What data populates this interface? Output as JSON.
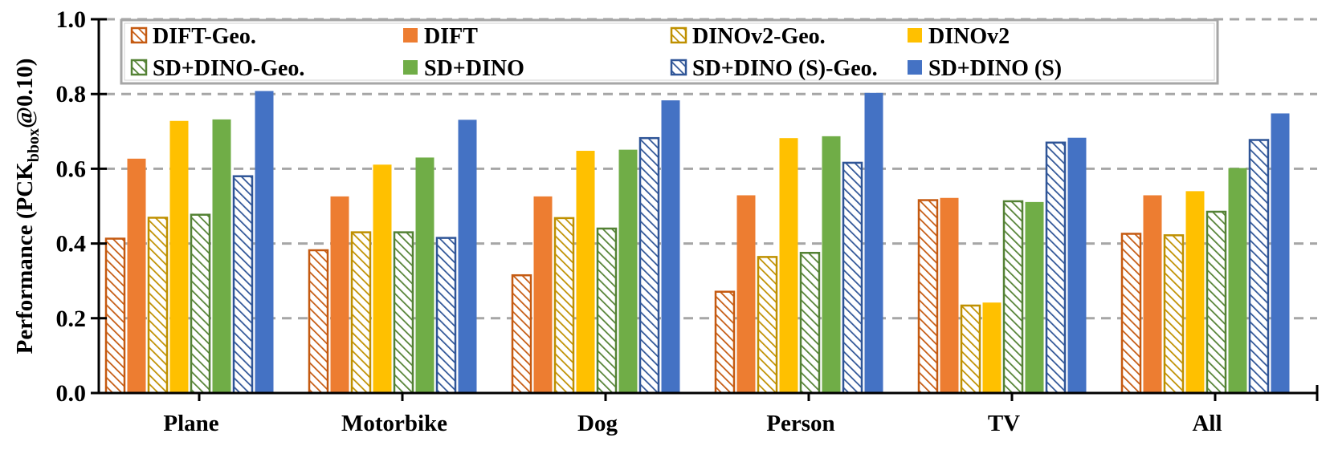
{
  "chart_data": {
    "type": "bar",
    "title": "",
    "xlabel": "",
    "ylabel": {
      "main": "Performance (PCK",
      "subscript": "bbox",
      "suffix": "@0.10)"
    },
    "ylim": [
      0,
      1.0
    ],
    "yticks": [
      0.0,
      0.2,
      0.4,
      0.6,
      0.8,
      1.0
    ],
    "ytick_labels": [
      "0.0",
      "0.2",
      "0.4",
      "0.6",
      "0.8",
      "1.0"
    ],
    "grid": "horizontal-dashed",
    "legend_position": "top",
    "categories": [
      "Plane",
      "Motorbike",
      "Dog",
      "Person",
      "TV",
      "All"
    ],
    "series": [
      {
        "name": "DIFT-Geo.",
        "color": "#C55A11",
        "hatched": true,
        "values": [
          0.413,
          0.382,
          0.315,
          0.271,
          0.516,
          0.426
        ]
      },
      {
        "name": "DIFT",
        "color": "#ED7D31",
        "hatched": false,
        "values": [
          0.627,
          0.526,
          0.526,
          0.529,
          0.522,
          0.529
        ]
      },
      {
        "name": "DINOv2-Geo.",
        "color": "#BF9000",
        "hatched": true,
        "values": [
          0.469,
          0.43,
          0.468,
          0.364,
          0.234,
          0.422
        ]
      },
      {
        "name": "DINOv2",
        "color": "#FFC000",
        "hatched": false,
        "values": [
          0.728,
          0.611,
          0.648,
          0.682,
          0.242,
          0.54
        ]
      },
      {
        "name": "SD+DINO-Geo.",
        "color": "#548235",
        "hatched": true,
        "values": [
          0.477,
          0.43,
          0.44,
          0.375,
          0.513,
          0.485
        ]
      },
      {
        "name": "SD+DINO",
        "color": "#70AD47",
        "hatched": false,
        "values": [
          0.732,
          0.63,
          0.651,
          0.687,
          0.511,
          0.602
        ]
      },
      {
        "name": "SD+DINO (S)-Geo.",
        "color": "#2F5597",
        "hatched": true,
        "values": [
          0.58,
          0.415,
          0.682,
          0.616,
          0.67,
          0.677
        ]
      },
      {
        "name": "SD+DINO (S)",
        "color": "#4472C4",
        "hatched": false,
        "values": [
          0.808,
          0.731,
          0.783,
          0.803,
          0.683,
          0.748
        ]
      }
    ]
  }
}
